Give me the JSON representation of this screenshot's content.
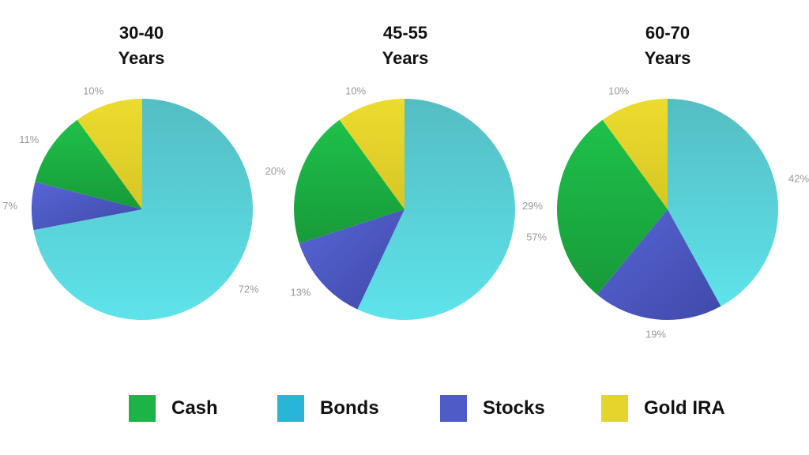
{
  "colors": {
    "Cash": "#1db346",
    "Bonds": "#4fd2dc",
    "Stocks": "#4f5cc8",
    "Gold IRA": "#e4d42b",
    "legend_bonds": "#29b6d6",
    "label_text": "#999999"
  },
  "chart_data": [
    {
      "type": "pie",
      "title_lines": [
        "30-40",
        "Years"
      ],
      "slices": [
        {
          "label": "Bonds",
          "value": 72,
          "text": "72%"
        },
        {
          "label": "Stocks",
          "value": 7,
          "text": "7%"
        },
        {
          "label": "Cash",
          "value": 11,
          "text": "11%"
        },
        {
          "label": "Gold IRA",
          "value": 10,
          "text": "10%"
        }
      ]
    },
    {
      "type": "pie",
      "title_lines": [
        "45-55",
        "Years"
      ],
      "slices": [
        {
          "label": "Bonds",
          "value": 57,
          "text": "57%"
        },
        {
          "label": "Stocks",
          "value": 13,
          "text": "13%"
        },
        {
          "label": "Cash",
          "value": 20,
          "text": "20%"
        },
        {
          "label": "Gold IRA",
          "value": 10,
          "text": "10%"
        }
      ]
    },
    {
      "type": "pie",
      "title_lines": [
        "60-70",
        "Years"
      ],
      "slices": [
        {
          "label": "Bonds",
          "value": 42,
          "text": "42%"
        },
        {
          "label": "Stocks",
          "value": 19,
          "text": "19%"
        },
        {
          "label": "Cash",
          "value": 29,
          "text": "29%"
        },
        {
          "label": "Gold IRA",
          "value": 10,
          "text": "10%"
        }
      ]
    }
  ],
  "legend": [
    {
      "label": "Cash",
      "color": "#1db346"
    },
    {
      "label": "Bonds",
      "color": "#29b6d6"
    },
    {
      "label": "Stocks",
      "color": "#4f5cc8"
    },
    {
      "label": "Gold IRA",
      "color": "#e4d42b"
    }
  ]
}
